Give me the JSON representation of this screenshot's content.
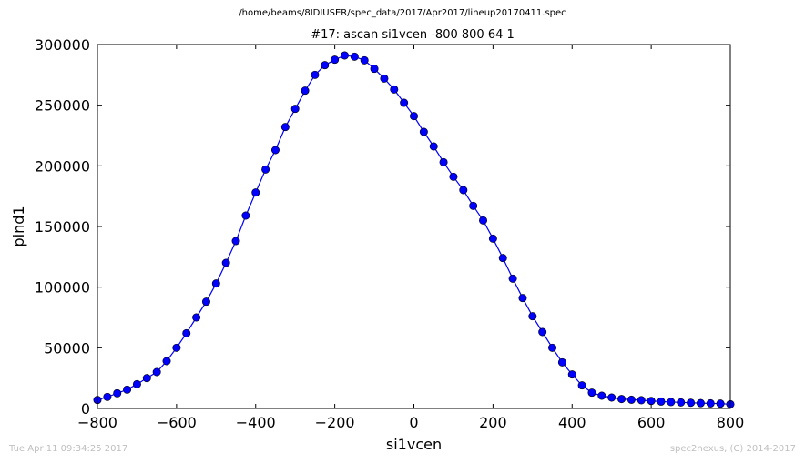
{
  "header": {
    "file_path": "/home/beams/8IDIUSER/spec_data/2017/Apr2017/lineup20170411.spec"
  },
  "footer": {
    "timestamp": "Tue Apr 11 09:34:25 2017",
    "credit": "spec2nexus, (C) 2014-2017"
  },
  "chart_data": {
    "type": "line",
    "title": "#17: ascan  si1vcen -800 800  64 1",
    "xlabel": "si1vcen",
    "ylabel": "pind1",
    "xlim": [
      -800,
      800
    ],
    "ylim": [
      0,
      300000
    ],
    "xticks": [
      -800,
      -600,
      -400,
      -200,
      0,
      200,
      400,
      600,
      800
    ],
    "yticks": [
      0,
      50000,
      100000,
      150000,
      200000,
      250000,
      300000
    ],
    "grid": false,
    "marker": "circle",
    "line_color": "#0000ff",
    "marker_color": "#0000ff",
    "series": [
      {
        "x": [
          -800,
          -775,
          -750,
          -725,
          -700,
          -675,
          -650,
          -625,
          -600,
          -575,
          -550,
          -525,
          -500,
          -475,
          -450,
          -425,
          -400,
          -375,
          -350,
          -325,
          -300,
          -275,
          -250,
          -225,
          -200,
          -175,
          -150,
          -125,
          -100,
          -75,
          -50,
          -25,
          0,
          25,
          50,
          75,
          100,
          125,
          150,
          175,
          200,
          225,
          250,
          275,
          300,
          325,
          350,
          375,
          400,
          425,
          450,
          475,
          500,
          525,
          550,
          575,
          600,
          625,
          650,
          675,
          700,
          725,
          750,
          775,
          800
        ],
        "y": [
          7000,
          9500,
          12500,
          15500,
          20000,
          25000,
          30000,
          39000,
          50000,
          62000,
          75000,
          88000,
          103000,
          120000,
          138000,
          159000,
          178000,
          197000,
          213000,
          232000,
          247000,
          262000,
          275000,
          283000,
          287500,
          291000,
          290000,
          287000,
          280000,
          272000,
          263000,
          252000,
          241000,
          228000,
          216000,
          203000,
          191000,
          180000,
          167000,
          155000,
          140000,
          124000,
          107000,
          91000,
          76000,
          63000,
          50000,
          38000,
          28000,
          19000,
          13000,
          10500,
          9000,
          7800,
          7200,
          6800,
          6200,
          5700,
          5300,
          5000,
          4700,
          4400,
          4200,
          4000,
          3500
        ]
      }
    ]
  }
}
